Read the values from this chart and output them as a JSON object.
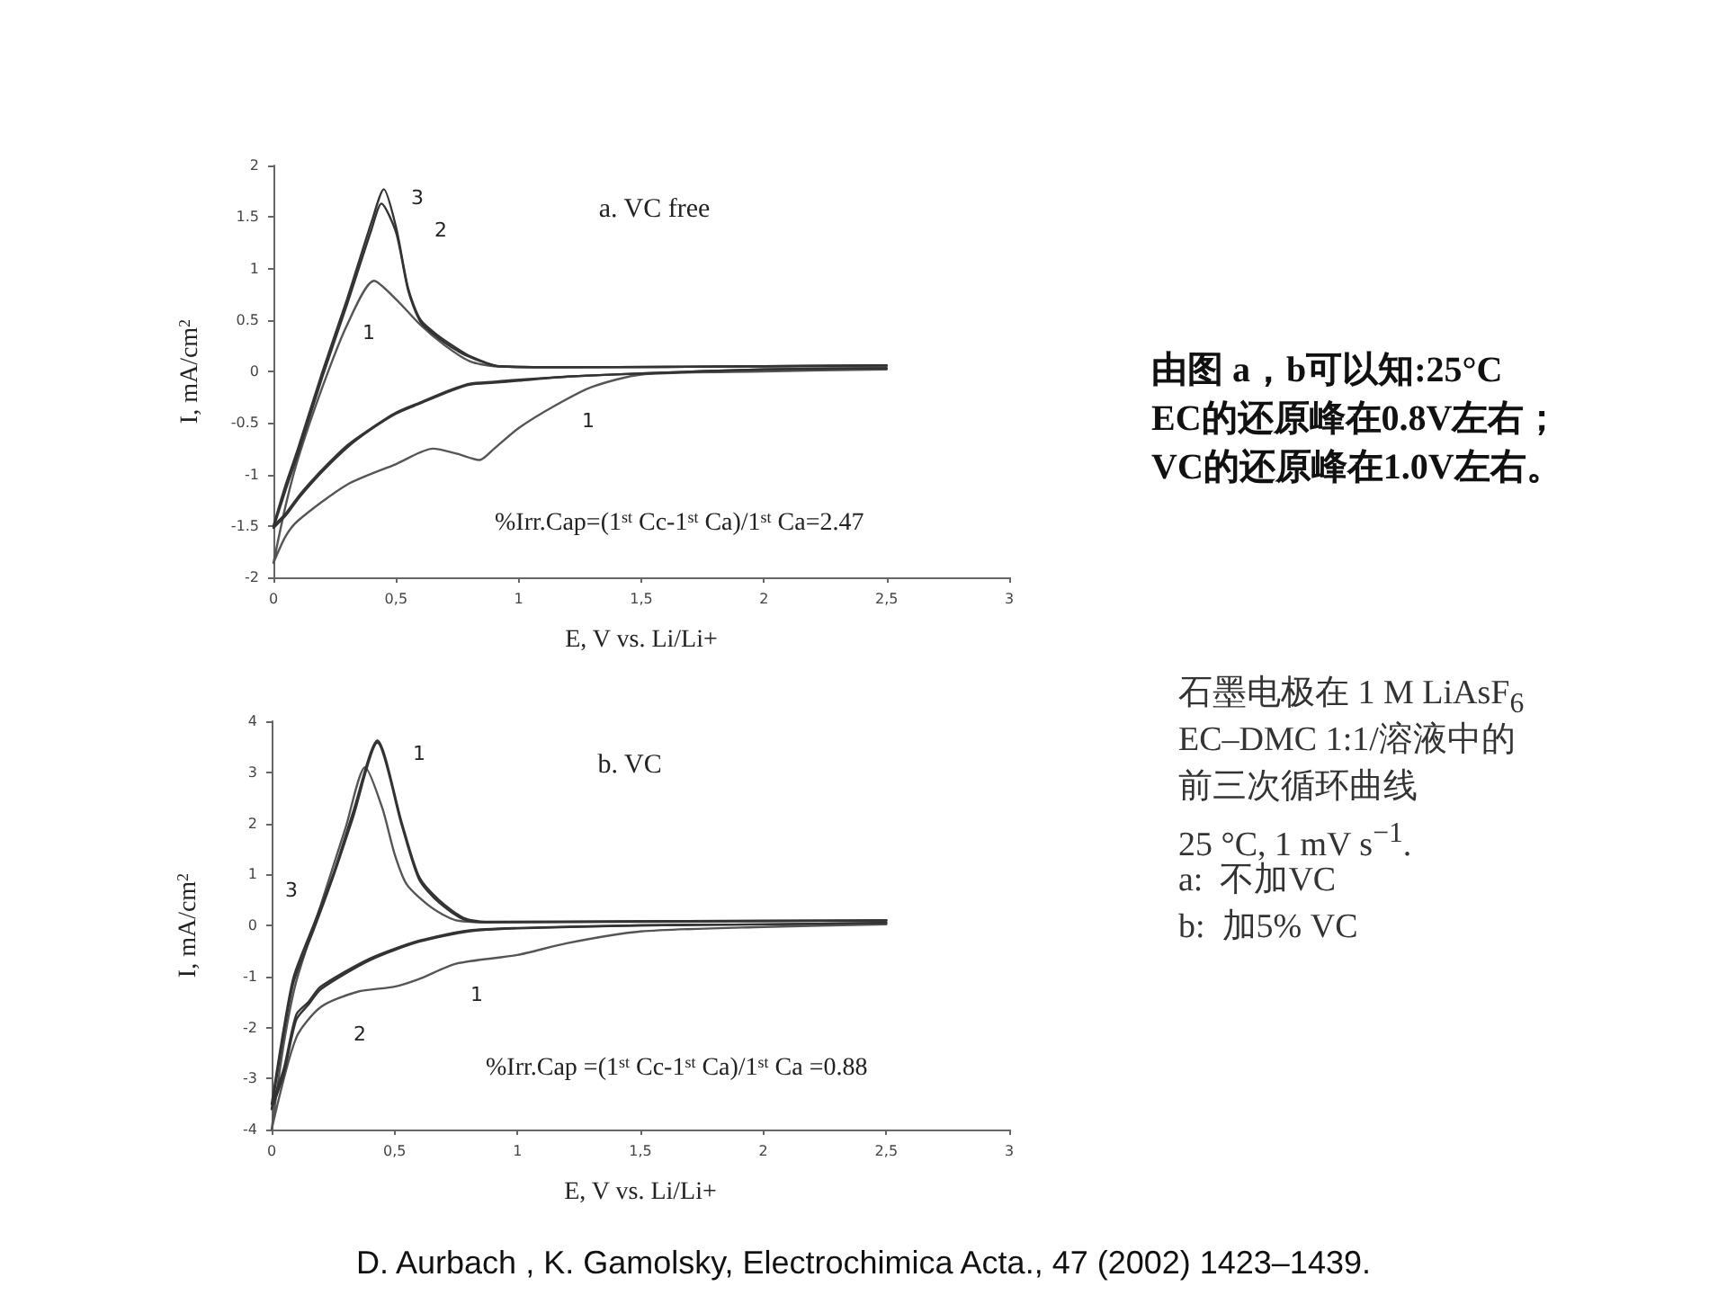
{
  "chart_data": [
    {
      "type": "line",
      "title": "a. VC free",
      "xlabel": "E, V vs. Li/Li+",
      "ylabel": "I, mA/cm$^{2}$",
      "marker": "none",
      "line_style": "solid",
      "grid": false,
      "xlim": [
        0,
        3
      ],
      "xticks": [
        0,
        {
          "value": 0.5,
          "label": "0,5"
        },
        1,
        {
          "value": 1.5,
          "label": "1,5"
        },
        2,
        {
          "value": 2.5,
          "label": "2,5"
        },
        3
      ],
      "ylim": [
        -2,
        2
      ],
      "yticks": [
        -2,
        -1.5,
        -1,
        -0.5,
        0,
        0.5,
        1,
        1.5,
        2
      ],
      "series": [
        {
          "color": "#555555",
          "x": [
            2.5,
            2,
            1.5,
            1.3,
            1.15,
            1,
            0.9,
            0.84,
            0.75,
            0.65,
            0.5,
            0.3,
            0.1,
            0.05,
            0,
            0.05,
            0.1,
            0.2,
            0.3,
            0.41,
            0.5,
            0.6,
            0.7,
            0.8,
            0.9,
            1.2,
            2,
            2.5
          ],
          "values": [
            0.02,
            0,
            -0.03,
            -0.15,
            -0.33,
            -0.55,
            -0.75,
            -0.86,
            -0.8,
            -0.75,
            -0.9,
            -1.1,
            -1.45,
            -1.6,
            -1.86,
            -1.3,
            -0.85,
            -0.15,
            0.45,
            0.88,
            0.7,
            0.45,
            0.25,
            0.1,
            0.05,
            0.04,
            0.05,
            0.05
          ]
        },
        {
          "color": "#333333",
          "x": [
            2.5,
            2,
            1.5,
            1.2,
            1,
            0.9,
            0.8,
            0.7,
            0.6,
            0.5,
            0.4,
            0.3,
            0.2,
            0.15,
            0.1,
            0.05,
            0,
            0.05,
            0.1,
            0.2,
            0.3,
            0.4,
            0.44,
            0.5,
            0.55,
            0.6,
            0.67,
            0.75,
            0.8,
            0.92,
            1.2,
            2,
            2.5
          ],
          "values": [
            0.03,
            0.02,
            -0.02,
            -0.05,
            -0.09,
            -0.11,
            -0.13,
            -0.21,
            -0.31,
            -0.41,
            -0.56,
            -0.74,
            -0.97,
            -1.1,
            -1.24,
            -1.4,
            -1.52,
            -1.15,
            -0.8,
            -0.05,
            0.65,
            1.38,
            1.63,
            1.35,
            0.78,
            0.48,
            0.33,
            0.2,
            0.14,
            0.05,
            0.04,
            0.05,
            0.06
          ]
        },
        {
          "color": "#333333",
          "x": [
            2.5,
            2,
            1.5,
            1.2,
            1,
            0.9,
            0.8,
            0.7,
            0.6,
            0.5,
            0.4,
            0.3,
            0.2,
            0.15,
            0.1,
            0.05,
            0,
            0.05,
            0.1,
            0.2,
            0.3,
            0.4,
            0.45,
            0.5,
            0.55,
            0.6,
            0.67,
            0.75,
            0.8,
            0.92,
            1.2,
            2,
            2.5
          ],
          "values": [
            0.03,
            0.02,
            -0.02,
            -0.05,
            -0.08,
            -0.1,
            -0.12,
            -0.2,
            -0.3,
            -0.4,
            -0.55,
            -0.72,
            -0.95,
            -1.08,
            -1.22,
            -1.38,
            -1.5,
            -1.1,
            -0.75,
            0,
            0.7,
            1.45,
            1.77,
            1.4,
            0.8,
            0.5,
            0.35,
            0.22,
            0.15,
            0.05,
            0.04,
            0.05,
            0.06
          ]
        }
      ],
      "annotations": [
        "3",
        "2",
        "1",
        "1",
        "%Irr.Cap=(1$^{st}$ Cc-1$^{st}$ Ca)/1$^{st}$ Ca=2.47"
      ]
    },
    {
      "type": "line",
      "title": "b. VC",
      "xlabel": "E, V vs. Li/Li+",
      "ylabel": "I, mA/cm$^{2}$",
      "marker": "none",
      "line_style": "solid",
      "grid": false,
      "xlim": [
        0,
        3
      ],
      "xticks": [
        0,
        {
          "value": 0.5,
          "label": "0,5"
        },
        1,
        {
          "value": 1.5,
          "label": "1,5"
        },
        2,
        {
          "value": 2.5,
          "label": "2,5"
        },
        3
      ],
      "ylim": [
        -4,
        4
      ],
      "yticks": [
        -4,
        -3,
        -2,
        -1,
        0,
        1,
        2,
        3,
        4
      ],
      "series": [
        {
          "color": "#555555",
          "x": [
            2.5,
            2,
            1.5,
            1.2,
            1,
            0.75,
            0.6,
            0.5,
            0.35,
            0.2,
            0.1,
            0,
            0.05,
            0.1,
            0.2,
            0.3,
            0.38,
            0.45,
            0.5,
            0.55,
            0.65,
            0.75,
            0.9,
            1.5,
            2.5
          ],
          "values": [
            0.02,
            -0.03,
            -0.12,
            -0.35,
            -0.58,
            -0.75,
            -1.05,
            -1.2,
            -1.3,
            -1.6,
            -2.2,
            -4,
            -2.3,
            -1.1,
            0.4,
            1.9,
            3.1,
            2.3,
            1.4,
            0.8,
            0.35,
            0.1,
            0.06,
            0.07,
            0.09
          ]
        },
        {
          "color": "#333333",
          "x": [
            2.5,
            2,
            1.5,
            1,
            0.8,
            0.6,
            0.4,
            0.2,
            0.15,
            0.1,
            0.05,
            0,
            0.05,
            0.09,
            0.17,
            0.25,
            0.33,
            0.43,
            0.53,
            0.6,
            0.68,
            0.78,
            0.87,
            1.5,
            2.5
          ],
          "values": [
            0.05,
            0.02,
            0,
            -0.06,
            -0.12,
            -0.32,
            -0.68,
            -1.25,
            -1.55,
            -1.85,
            -2.9,
            -3.6,
            -2.1,
            -1.1,
            -0.1,
            0.95,
            2.1,
            3.58,
            1.95,
            0.9,
            0.45,
            0.12,
            0.06,
            0.08,
            0.1
          ]
        },
        {
          "color": "#333333",
          "x": [
            2.5,
            2,
            1.5,
            1,
            0.8,
            0.6,
            0.4,
            0.2,
            0.15,
            0.1,
            0.05,
            0,
            0.05,
            0.09,
            0.17,
            0.25,
            0.33,
            0.43,
            0.53,
            0.6,
            0.68,
            0.78,
            0.87,
            1.5,
            2.5
          ],
          "values": [
            0.05,
            0.02,
            0,
            -0.05,
            -0.1,
            -0.3,
            -0.65,
            -1.2,
            -1.5,
            -1.75,
            -2.8,
            -3.5,
            -2,
            -1,
            0,
            1,
            2.2,
            3.62,
            2,
            0.95,
            0.5,
            0.15,
            0.07,
            0.08,
            0.1
          ]
        }
      ],
      "annotations": [
        "1",
        "3",
        "2",
        "1",
        "%Irr.Cap =(1$^{st}$ Cc-1$^{st}$ Ca)/1$^{st}$ Ca =0.88"
      ]
    },
    {
      "type": "other",
      "annotations": [
        "由图 a，b可以知:25°C",
        "EC的还原峰在0.8V左右；",
        "VC的还原峰在1.0V左右。",
        "石墨电极在 1 M LiAsF$_{6}$",
        "EC–DMC 1:1/溶液中的",
        "前三次循环曲线",
        "25 °C, 1 mV s$^{−1}$.",
        "a:  不加VC",
        "b:  加5% VC",
        "D. Aurbach , K. Gamolsky, Electrochimica Acta., 47 (2002) 1423–1439."
      ]
    }
  ]
}
